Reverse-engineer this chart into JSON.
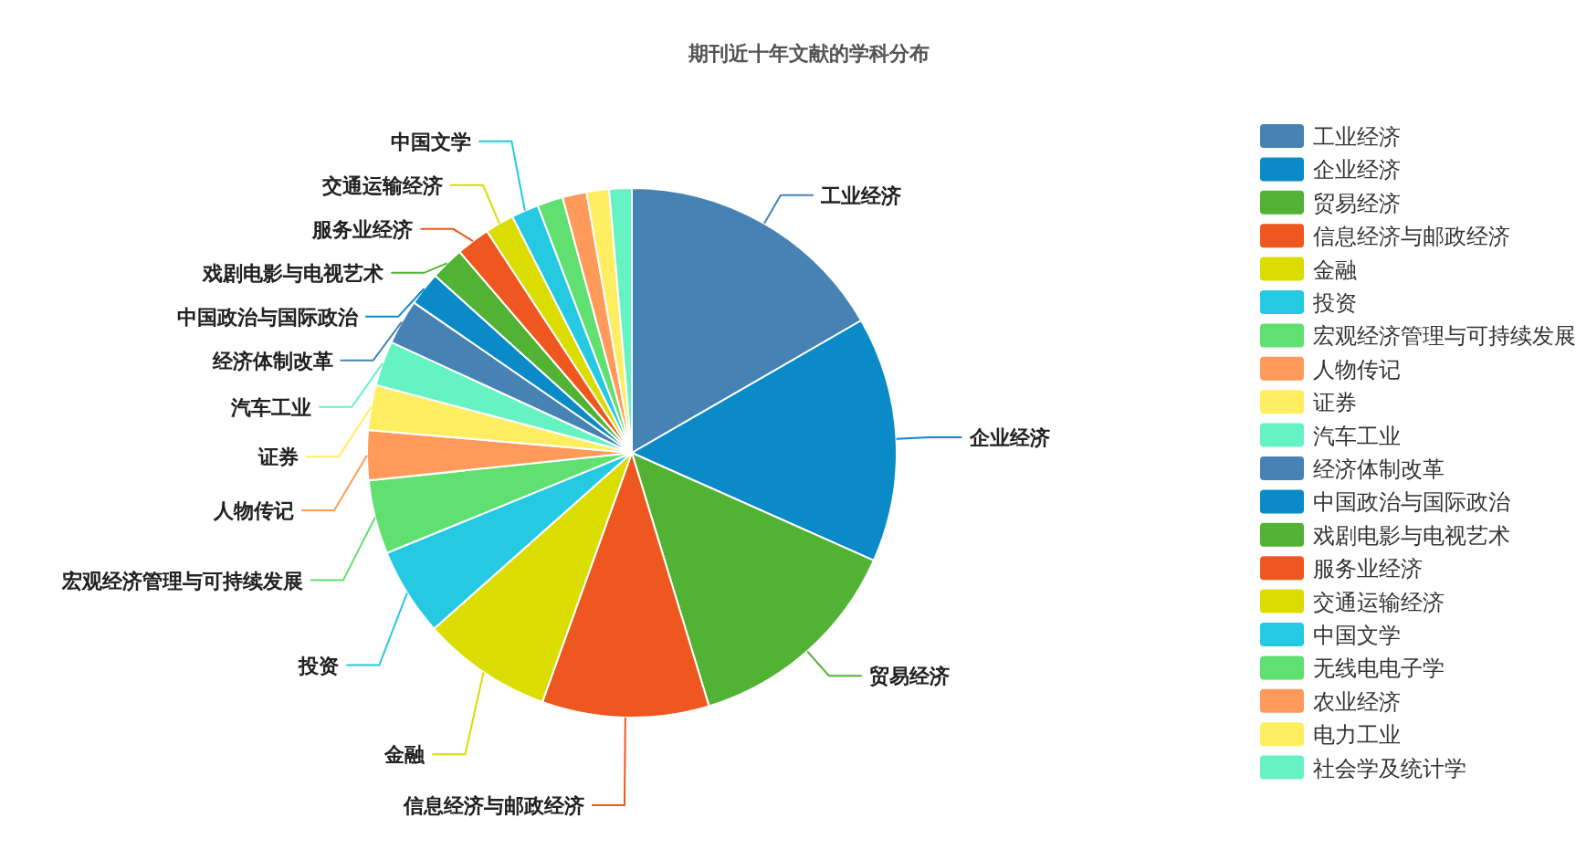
{
  "chart_data": {
    "type": "pie",
    "title": "期刊近十年文献的学科分布",
    "categories": [
      "工业经济",
      "企业经济",
      "贸易经济",
      "信息经济与邮政经济",
      "金融",
      "投资",
      "宏观经济管理与可持续发展",
      "人物传记",
      "证券",
      "汽车工业",
      "经济体制改革",
      "中国政治与国际政治",
      "戏剧电影与电视艺术",
      "服务业经济",
      "交通运输经济",
      "中国文学",
      "无线电电子学",
      "农业经济",
      "电力工业",
      "社会学及统计学"
    ],
    "values": [
      17,
      15.3,
      13.9,
      10.4,
      8.1,
      5.5,
      4.6,
      3.1,
      2.8,
      2.8,
      2.8,
      2.1,
      2.1,
      2.1,
      1.8,
      1.7,
      1.6,
      1.5,
      1.4,
      1.4
    ],
    "colors": [
      "#4682b4",
      "#0a8ac6",
      "#52b234",
      "#ef5720",
      "#dbdc00",
      "#25c9e2",
      "#5fe070",
      "#ff9a5a",
      "#ffee62",
      "#66f3c4",
      "#4682b4",
      "#0a8ac6",
      "#52b234",
      "#ef5720",
      "#dbdc00",
      "#25c9e2",
      "#5fe070",
      "#ff9a5a",
      "#ffee62",
      "#66f3c4"
    ],
    "legend": "right"
  }
}
